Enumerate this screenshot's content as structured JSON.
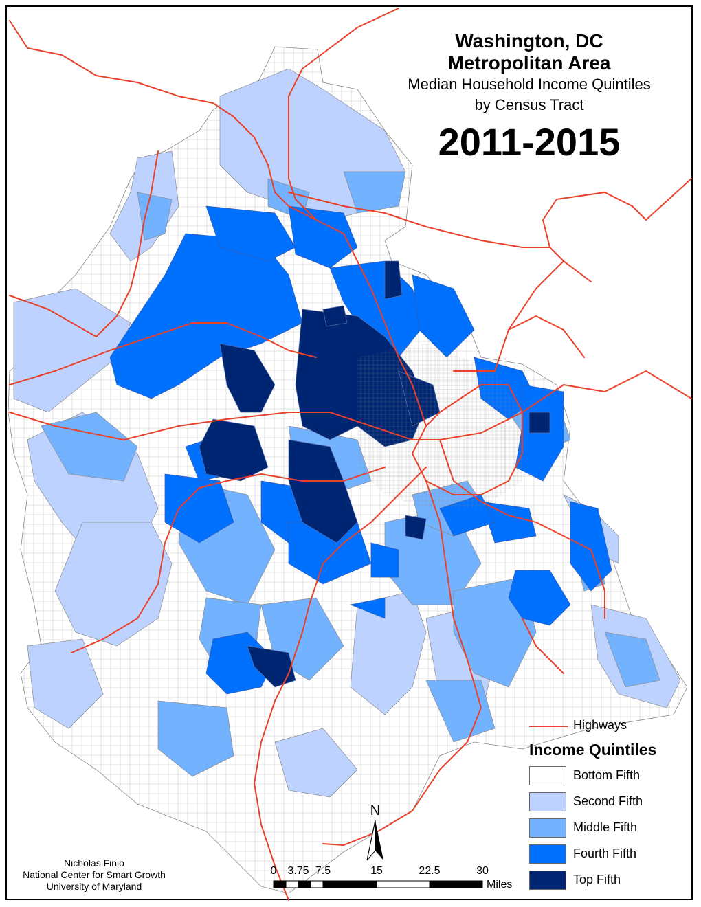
{
  "title": {
    "line1": "Washington, DC",
    "line2": "Metropolitan Area",
    "line3": "Median Household Income Quintiles",
    "line4": "by Census Tract",
    "year": "2011-2015"
  },
  "legend": {
    "highways_label": "Highways",
    "highway_color": "#e8402a",
    "heading": "Income Quintiles",
    "classes": [
      {
        "label": "Bottom Fifth",
        "color": "#ffffff"
      },
      {
        "label": "Second Fifth",
        "color": "#bed2ff"
      },
      {
        "label": "Middle Fifth",
        "color": "#73b2ff"
      },
      {
        "label": "Fourth Fifth",
        "color": "#0070ff"
      },
      {
        "label": "Top Fifth",
        "color": "#002673"
      }
    ]
  },
  "scale_bar": {
    "ticks": [
      "0",
      "3.75",
      "7.5",
      "15",
      "22.5",
      "30"
    ],
    "unit": "Miles"
  },
  "north_arrow": {
    "letter": "N",
    "icon": "north-arrow-icon"
  },
  "credit": {
    "line1": "Nicholas Finio",
    "line2": "National Center for Smart Growth",
    "line3": "University of Maryland"
  }
}
